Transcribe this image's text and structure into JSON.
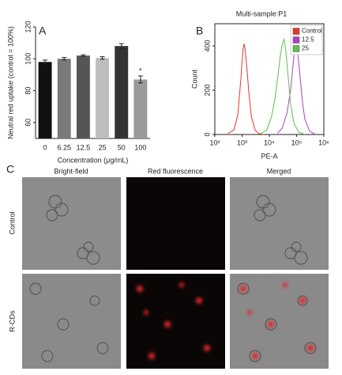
{
  "chart_data": [
    {
      "type": "bar",
      "panel": "A",
      "ylabel": "Neutral red uptake (control = 100%)",
      "xlabel": "Concentration (μg/mL)",
      "categories": [
        "0",
        "6.25",
        "12.5",
        "25",
        "50",
        "100"
      ],
      "values": [
        98,
        100,
        102,
        100.5,
        108,
        87
      ],
      "errors": [
        1.2,
        0.8,
        0.5,
        0.8,
        1.5,
        2.2
      ],
      "colors": [
        "#111111",
        "#7a7a7a",
        "#555555",
        "#bdbdbd",
        "#333333",
        "#9a9a9a"
      ],
      "annotation": "*",
      "ylim": [
        50,
        120
      ],
      "yticks": [
        60,
        80,
        100,
        120
      ]
    },
    {
      "type": "line",
      "panel": "B",
      "title": "Multi-sample:P1",
      "xlabel": "PE-A",
      "ylabel": "Count",
      "xscale": "log",
      "xlim": [
        100,
        1000000
      ],
      "xticks": [
        {
          "value": 100,
          "label": "10²"
        },
        {
          "value": 1000,
          "label": "10³"
        },
        {
          "value": 10000,
          "label": "10⁴"
        },
        {
          "value": 100000,
          "label": "10⁵"
        },
        {
          "value": 1000000,
          "label": "10⁶"
        }
      ],
      "ylim": [
        0,
        500
      ],
      "yticks": [
        0,
        200,
        400
      ],
      "legend": "upper right",
      "series": [
        {
          "name": "Control",
          "color": "#e8372a",
          "x": [
            300,
            500,
            700,
            900,
            1000,
            1100,
            1200,
            1300,
            1500,
            1800,
            2200,
            3000,
            4000,
            6000
          ],
          "values": [
            5,
            20,
            90,
            250,
            330,
            390,
            410,
            380,
            300,
            180,
            80,
            20,
            5,
            0
          ]
        },
        {
          "name": "12.5",
          "color": "#b040c0",
          "x": [
            20000,
            30000,
            45000,
            60000,
            75000,
            85000,
            95000,
            110000,
            130000,
            160000,
            200000,
            300000,
            500000
          ],
          "values": [
            5,
            30,
            100,
            200,
            320,
            390,
            410,
            370,
            280,
            160,
            70,
            15,
            0
          ]
        },
        {
          "name": "25",
          "color": "#5cc04a",
          "x": [
            5000,
            8000,
            12000,
            16000,
            20000,
            25000,
            30000,
            35000,
            40000,
            50000,
            60000,
            80000,
            120000,
            200000
          ],
          "values": [
            5,
            20,
            80,
            160,
            250,
            350,
            410,
            430,
            380,
            250,
            140,
            50,
            10,
            0
          ]
        }
      ]
    }
  ],
  "images": {
    "panel": "C",
    "columns": [
      "Bright-field",
      "Red fluorescence",
      "Merged"
    ],
    "rows": [
      "Control",
      "R-CDs"
    ]
  }
}
